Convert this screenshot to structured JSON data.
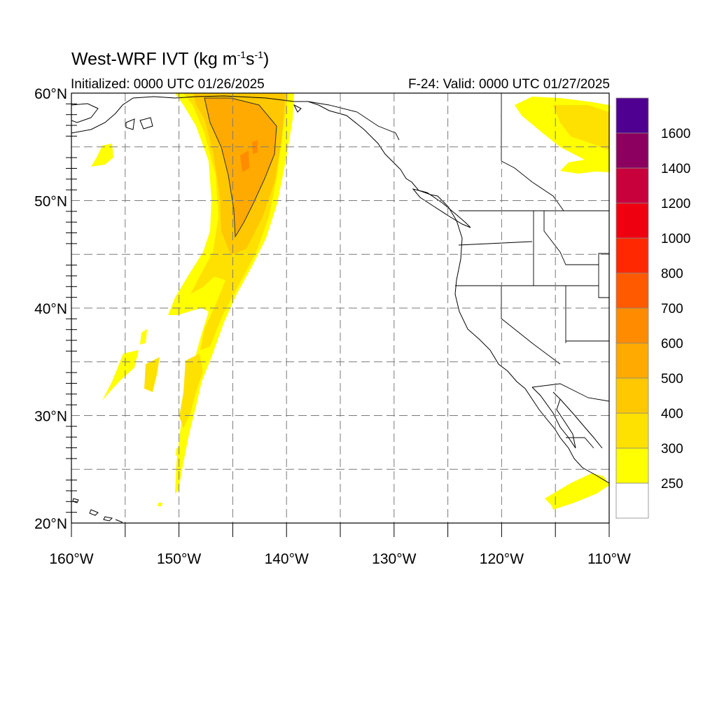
{
  "title": {
    "main": "West-WRF IVT (kg m",
    "sup1": "-1",
    "mid": "s",
    "sup2": "-1",
    "end": ")"
  },
  "subtitle": {
    "initialized": "Initialized: 0000 UTC 01/26/2025",
    "valid": "F-24: Valid: 0000 UTC 01/27/2025"
  },
  "map": {
    "lon_range": [
      -160,
      -110
    ],
    "lat_range": [
      20,
      60
    ],
    "grid": "dashed every 5 degrees",
    "x_ticks": [
      {
        "lon": -160,
        "label": "160°W"
      },
      {
        "lon": -150,
        "label": "150°W"
      },
      {
        "lon": -140,
        "label": "140°W"
      },
      {
        "lon": -130,
        "label": "130°W"
      },
      {
        "lon": -120,
        "label": "120°W"
      },
      {
        "lon": -110,
        "label": "110°W"
      }
    ],
    "y_ticks": [
      {
        "lat": 60,
        "label": "60°N"
      },
      {
        "lat": 50,
        "label": "50°N"
      },
      {
        "lat": 40,
        "label": "40°N"
      },
      {
        "lat": 30,
        "label": "30°N"
      },
      {
        "lat": 20,
        "label": "20°N"
      }
    ]
  },
  "colorbar": {
    "levels": [
      {
        "label": "",
        "color": "#ffffff"
      },
      {
        "label": "250",
        "color": "#ffff00"
      },
      {
        "label": "300",
        "color": "#ffe100"
      },
      {
        "label": "400",
        "color": "#ffc800"
      },
      {
        "label": "500",
        "color": "#ffaa00"
      },
      {
        "label": "600",
        "color": "#ff8c00"
      },
      {
        "label": "700",
        "color": "#ff5a00"
      },
      {
        "label": "800",
        "color": "#ff2800"
      },
      {
        "label": "1000",
        "color": "#ee0010"
      },
      {
        "label": "1200",
        "color": "#c8003c"
      },
      {
        "label": "1400",
        "color": "#8c005f"
      },
      {
        "label": "1600",
        "color": "#500090"
      }
    ]
  }
}
